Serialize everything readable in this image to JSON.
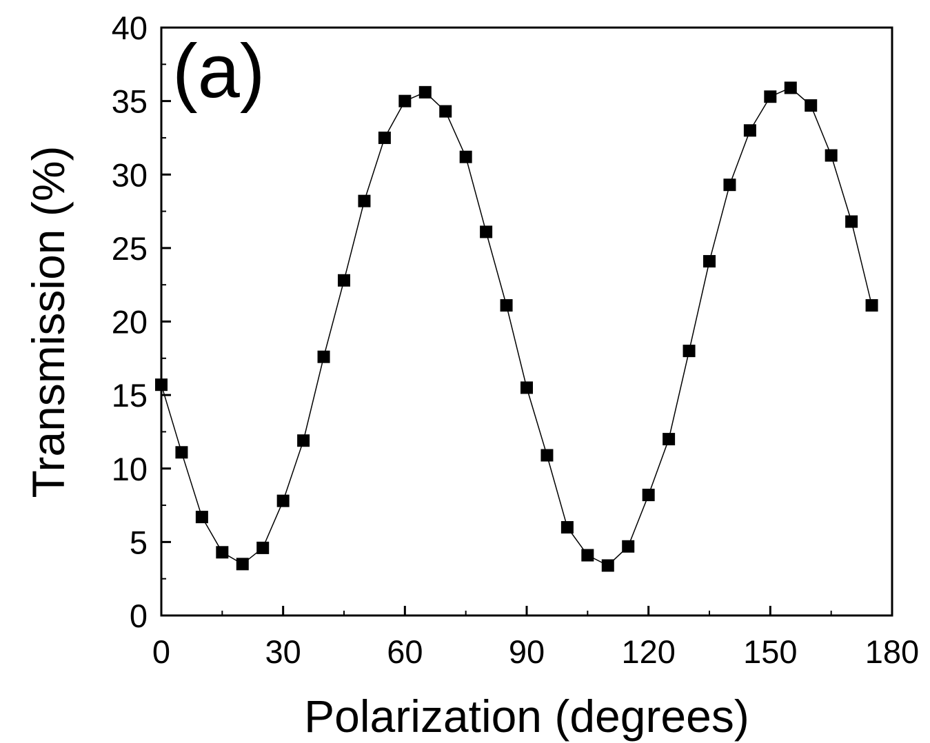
{
  "chart_data": {
    "type": "line",
    "panel_label": "(a)",
    "xlabel": "Polarization (degrees)",
    "ylabel": "Transmission (%)",
    "xlim": [
      0,
      180
    ],
    "ylim": [
      0,
      40
    ],
    "x_ticks": [
      0,
      30,
      60,
      90,
      120,
      150,
      180
    ],
    "x_tick_labels": [
      "0",
      "30",
      "60",
      "90",
      "120",
      "150",
      "180"
    ],
    "y_ticks": [
      0,
      5,
      10,
      15,
      20,
      25,
      30,
      35,
      40
    ],
    "y_tick_labels": [
      "0",
      "5",
      "10",
      "15",
      "20",
      "25",
      "30",
      "35",
      "40"
    ],
    "grid": false,
    "marker": "square",
    "colors": {
      "series": "#000000",
      "axes": "#000000",
      "background": "#ffffff"
    },
    "series": [
      {
        "x": [
          0,
          5,
          10,
          15,
          20,
          25,
          30,
          35,
          40,
          45,
          50,
          55,
          60,
          65,
          70,
          75,
          80,
          85,
          90,
          95,
          100,
          105,
          110,
          115,
          120,
          125,
          130,
          135,
          140,
          145,
          150,
          155,
          160,
          165,
          170,
          175
        ],
        "values": [
          15.7,
          11.1,
          6.7,
          4.3,
          3.5,
          4.6,
          7.8,
          11.9,
          17.6,
          22.8,
          28.2,
          32.5,
          35.0,
          35.6,
          34.3,
          31.2,
          26.1,
          21.1,
          15.5,
          10.9,
          6.0,
          4.1,
          3.4,
          4.7,
          8.2,
          12.0,
          18.0,
          24.1,
          29.3,
          33.0,
          35.3,
          35.9,
          34.7,
          31.3,
          26.8,
          21.1
        ]
      }
    ]
  }
}
